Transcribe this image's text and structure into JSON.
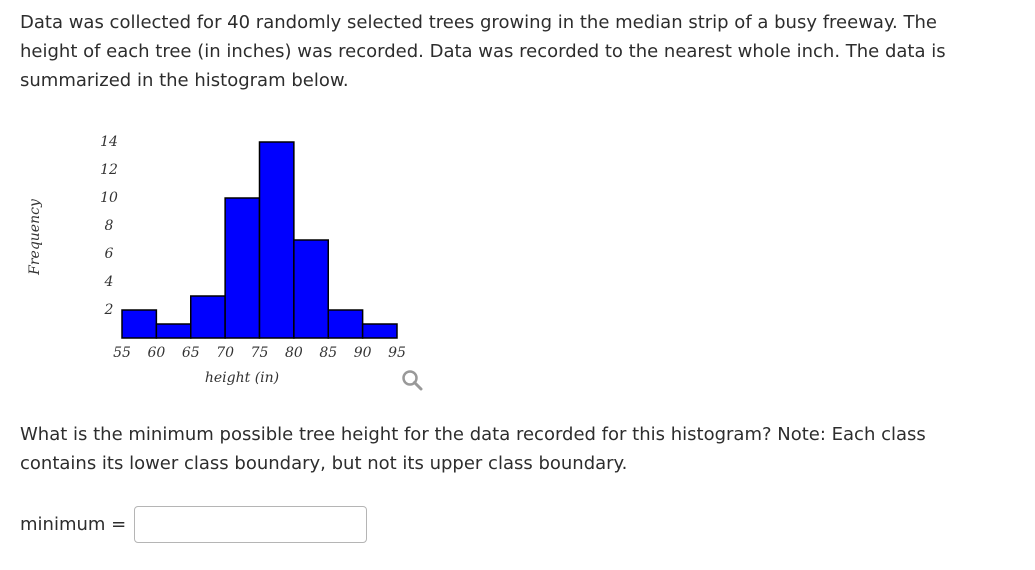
{
  "intro": "Data was collected for 40 randomly selected trees growing in the median strip of a busy freeway. The height of each tree (in inches) was recorded. Data was recorded to the nearest whole inch. The data is summarized in the histogram below.",
  "chart_data": {
    "type": "histogram",
    "x_label": "height (in)",
    "y_label": "Frequency",
    "bins": [
      55,
      60,
      65,
      70,
      75,
      80,
      85,
      90,
      95
    ],
    "values": [
      2,
      1,
      3,
      10,
      14,
      7,
      2,
      1
    ],
    "color": "#0000ff",
    "xlim": [
      55,
      95
    ],
    "xticks": [
      55,
      60,
      65,
      70,
      75,
      80,
      85,
      90,
      95
    ],
    "ylim": [
      0,
      14
    ],
    "yticks": [
      2,
      4,
      6,
      8,
      10,
      12,
      14
    ],
    "grid": false
  },
  "question": "What is the minimum possible tree height for the data recorded for this histogram? Note: Each class contains its lower class boundary, but not its upper class boundary.",
  "answer_label": "minimum ="
}
